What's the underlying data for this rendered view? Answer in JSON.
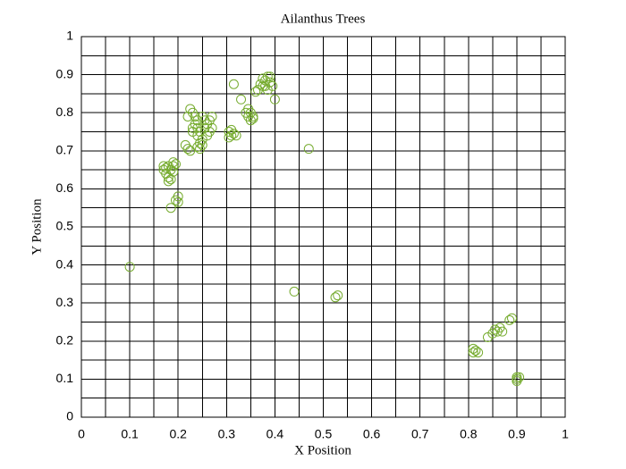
{
  "chart_data": {
    "type": "scatter",
    "title": "Ailanthus Trees",
    "xlabel": "X Position",
    "ylabel": "Y Position",
    "x": [
      0.1,
      0.17,
      0.175,
      0.18,
      0.18,
      0.175,
      0.185,
      0.19,
      0.19,
      0.18,
      0.185,
      0.17,
      0.19,
      0.195,
      0.2,
      0.195,
      0.2,
      0.185,
      0.215,
      0.22,
      0.225,
      0.22,
      0.225,
      0.23,
      0.235,
      0.24,
      0.235,
      0.24,
      0.245,
      0.24,
      0.25,
      0.245,
      0.24,
      0.245,
      0.25,
      0.255,
      0.26,
      0.265,
      0.27,
      0.265,
      0.27,
      0.26,
      0.255,
      0.25,
      0.23,
      0.23,
      0.305,
      0.31,
      0.315,
      0.32,
      0.305,
      0.31,
      0.315,
      0.33,
      0.34,
      0.345,
      0.35,
      0.355,
      0.35,
      0.345,
      0.355,
      0.36,
      0.365,
      0.37,
      0.375,
      0.38,
      0.385,
      0.39,
      0.38,
      0.375,
      0.39,
      0.395,
      0.385,
      0.4,
      0.47,
      0.44,
      0.525,
      0.53,
      0.81,
      0.815,
      0.81,
      0.82,
      0.84,
      0.85,
      0.855,
      0.86,
      0.865,
      0.87,
      0.885,
      0.89,
      0.9,
      0.9,
      0.905,
      0.9
    ],
    "values": [
      0.395,
      0.65,
      0.64,
      0.63,
      0.62,
      0.655,
      0.65,
      0.66,
      0.645,
      0.66,
      0.625,
      0.66,
      0.67,
      0.665,
      0.58,
      0.57,
      0.565,
      0.55,
      0.715,
      0.705,
      0.7,
      0.79,
      0.81,
      0.8,
      0.79,
      0.78,
      0.77,
      0.76,
      0.75,
      0.74,
      0.73,
      0.72,
      0.71,
      0.705,
      0.715,
      0.76,
      0.77,
      0.78,
      0.79,
      0.75,
      0.76,
      0.74,
      0.78,
      0.79,
      0.76,
      0.75,
      0.75,
      0.74,
      0.745,
      0.74,
      0.735,
      0.755,
      0.875,
      0.835,
      0.8,
      0.79,
      0.8,
      0.79,
      0.78,
      0.81,
      0.785,
      0.855,
      0.86,
      0.875,
      0.89,
      0.885,
      0.895,
      0.88,
      0.87,
      0.87,
      0.895,
      0.87,
      0.86,
      0.835,
      0.705,
      0.33,
      0.315,
      0.32,
      0.18,
      0.175,
      0.17,
      0.17,
      0.21,
      0.22,
      0.23,
      0.225,
      0.235,
      0.225,
      0.255,
      0.26,
      0.105,
      0.095,
      0.105,
      0.1
    ],
    "color": "#77ac30",
    "xlim": [
      0,
      1
    ],
    "ylim": [
      0,
      1
    ],
    "xticks": [
      0,
      0.1,
      0.2,
      0.3,
      0.4,
      0.5,
      0.6,
      0.7,
      0.8,
      0.9,
      1
    ],
    "yticks": [
      0,
      0.1,
      0.2,
      0.3,
      0.4,
      0.5,
      0.6,
      0.7,
      0.8,
      0.9,
      1
    ],
    "xminor_ticks": [
      0.05,
      0.15,
      0.25,
      0.35,
      0.45,
      0.55,
      0.65,
      0.75,
      0.85,
      0.95
    ],
    "yminor_ticks": [
      0.05,
      0.15,
      0.25,
      0.35,
      0.45,
      0.55,
      0.65,
      0.75,
      0.85,
      0.95
    ],
    "grid": true,
    "minor_grid": true
  }
}
